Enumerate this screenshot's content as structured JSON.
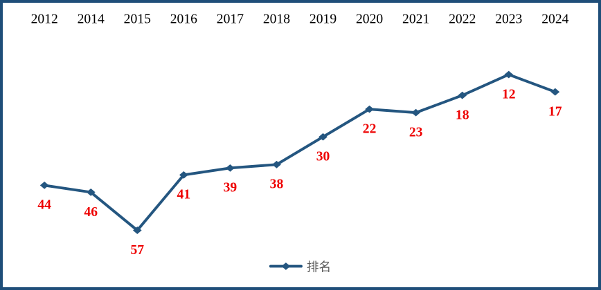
{
  "chart_data": {
    "type": "line",
    "title": "",
    "xlabel": "",
    "ylabel": "",
    "categories": [
      "2012",
      "2014",
      "2015",
      "2016",
      "2017",
      "2018",
      "2019",
      "2020",
      "2021",
      "2022",
      "2023",
      "2024"
    ],
    "series": [
      {
        "name": "排名",
        "values": [
          44,
          46,
          57,
          41,
          39,
          38,
          30,
          22,
          23,
          18,
          12,
          17
        ]
      }
    ],
    "y_axis": {
      "inverted": true,
      "visible": false
    },
    "x_axis": {
      "position": "top",
      "visible_line": false
    },
    "grid": false,
    "data_labels": true,
    "marker": "diamond",
    "legend": {
      "label": "排名",
      "position": "bottom-center"
    },
    "colors": {
      "line": "#245680",
      "marker": "#245680",
      "data_label": "#EE0000",
      "category_label": "#000000",
      "legend_text": "#595959",
      "frame": "#1F4E79",
      "background": "#FFFFFF"
    }
  }
}
